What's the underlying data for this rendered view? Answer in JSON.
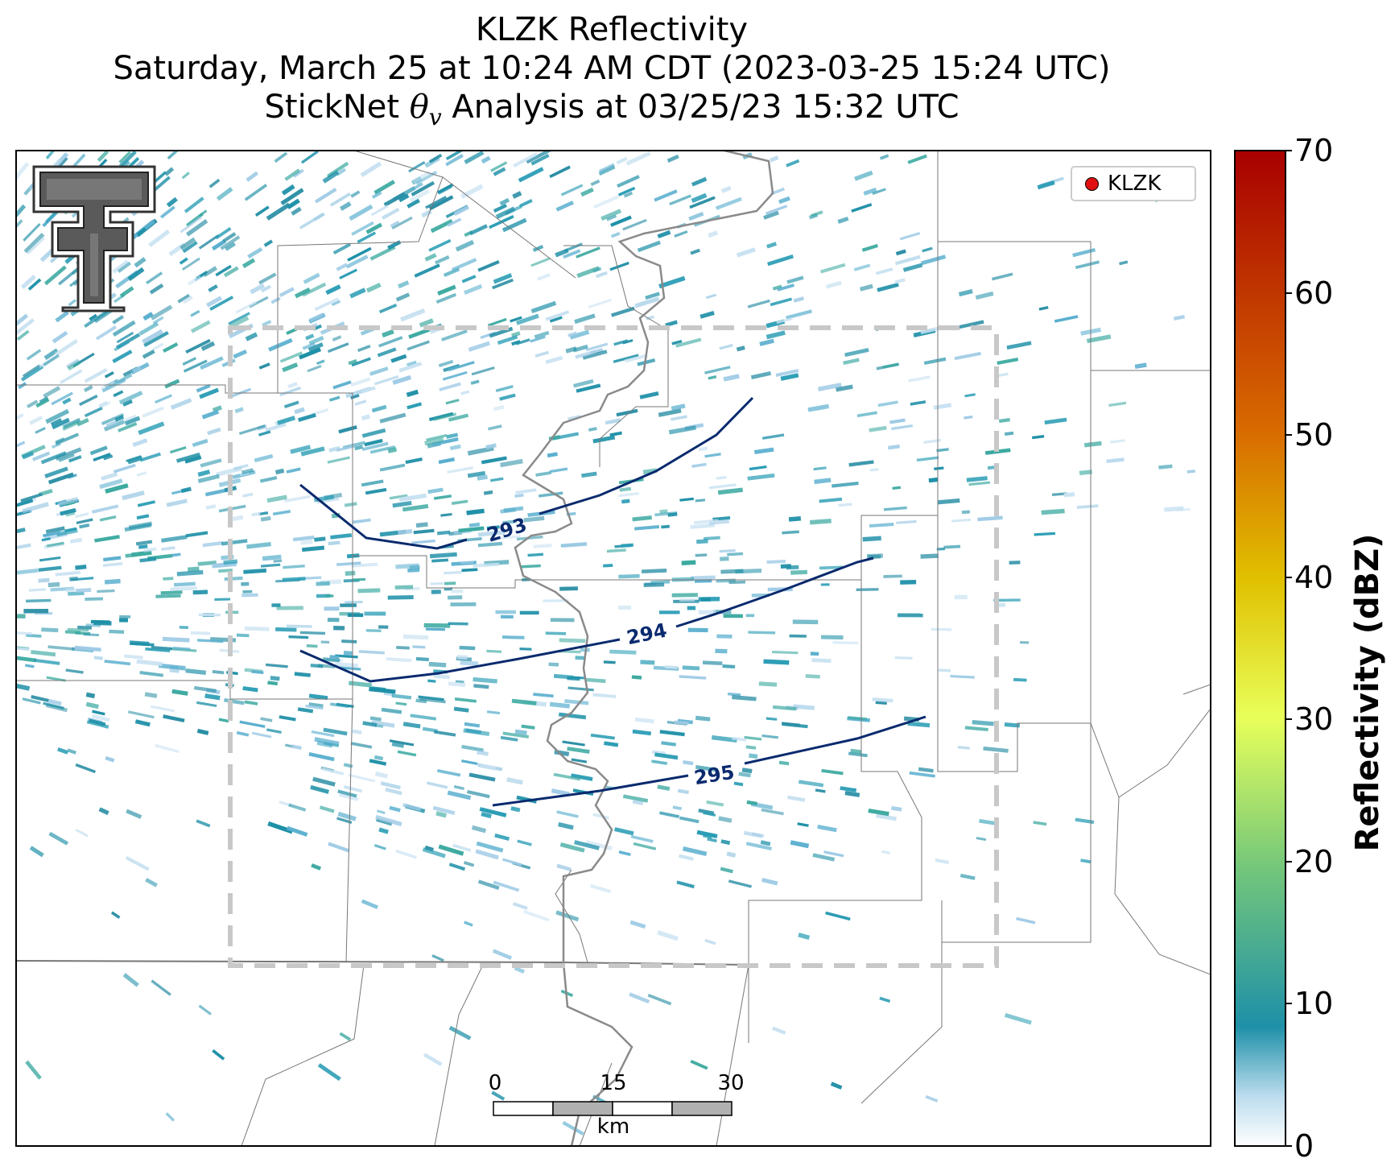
{
  "title": {
    "line1": "KLZK Reflectivity",
    "line2": "Saturday, March 25 at 10:24 AM CDT (2023-03-25 15:24 UTC)",
    "line3_prefix": "StickNet ",
    "line3_theta": "θ",
    "line3_sub": "v",
    "line3_suffix": " Analysis at 03/25/23 15:32 UTC"
  },
  "legend": {
    "label": "KLZK",
    "marker_color": "#e01010"
  },
  "colorbar": {
    "label": "Reflectivity (dBZ)",
    "ticks": [
      "0",
      "10",
      "20",
      "30",
      "40",
      "50",
      "60",
      "70"
    ],
    "range": [
      0,
      70
    ],
    "colors": [
      "#ffffff",
      "#1e90a8",
      "#74c77a",
      "#e8ff5a",
      "#e0c000",
      "#d86a00",
      "#b00000"
    ]
  },
  "contours": [
    {
      "label": "293",
      "color": "#0a2a6e"
    },
    {
      "label": "294",
      "color": "#0a2a6e"
    },
    {
      "label": "295",
      "color": "#0a2a6e"
    }
  ],
  "scalebar": {
    "ticks": [
      "0",
      "15",
      "30"
    ],
    "unit": "km"
  },
  "logo": {
    "name": "Texas Tech Double T",
    "text": "T"
  },
  "analysis_box": {
    "style": "dashed",
    "color": "#c8c8c8"
  }
}
